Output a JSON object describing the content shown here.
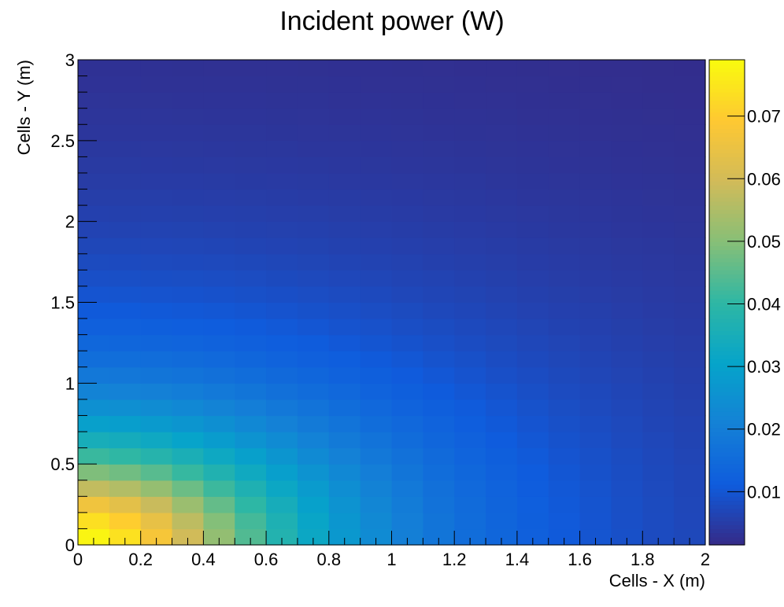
{
  "chart_data": {
    "type": "heatmap",
    "title": "Incident power (W)",
    "xlabel": "Cells - X (m)",
    "ylabel": "Cells - Y (m)",
    "xlim": [
      0,
      2
    ],
    "ylim": [
      0,
      3
    ],
    "x_bins": 20,
    "y_bins": 30,
    "x_ticks": [
      "0",
      "0.2",
      "0.4",
      "0.6",
      "0.8",
      "1",
      "1.2",
      "1.4",
      "1.6",
      "1.8",
      "2"
    ],
    "y_ticks": [
      "0",
      "0.5",
      "1",
      "1.5",
      "2",
      "2.5",
      "3"
    ],
    "colorbar": {
      "zlim": [
        0.0015,
        0.079
      ],
      "tick_values": [
        0.01,
        0.02,
        0.03,
        0.04,
        0.05,
        0.06,
        0.07
      ],
      "tick_labels": [
        "0.01",
        "0.02",
        "0.03",
        "0.04",
        "0.05",
        "0.06",
        "0.07"
      ]
    },
    "palette": [
      "#352a87",
      "#0f5cdd",
      "#1481d6",
      "#06a4ca",
      "#2eb7a4",
      "#87bf77",
      "#d1bb59",
      "#fec832",
      "#f9fb0e"
    ],
    "model": {
      "description_of_values": "cell value = peak / (1 + (x/sx)^2 + (y/sy)^2), x and y are cell centers in m",
      "peak": 0.079,
      "sx": 0.62,
      "sy": 0.58,
      "floor": 0.0015
    },
    "grid": false
  }
}
